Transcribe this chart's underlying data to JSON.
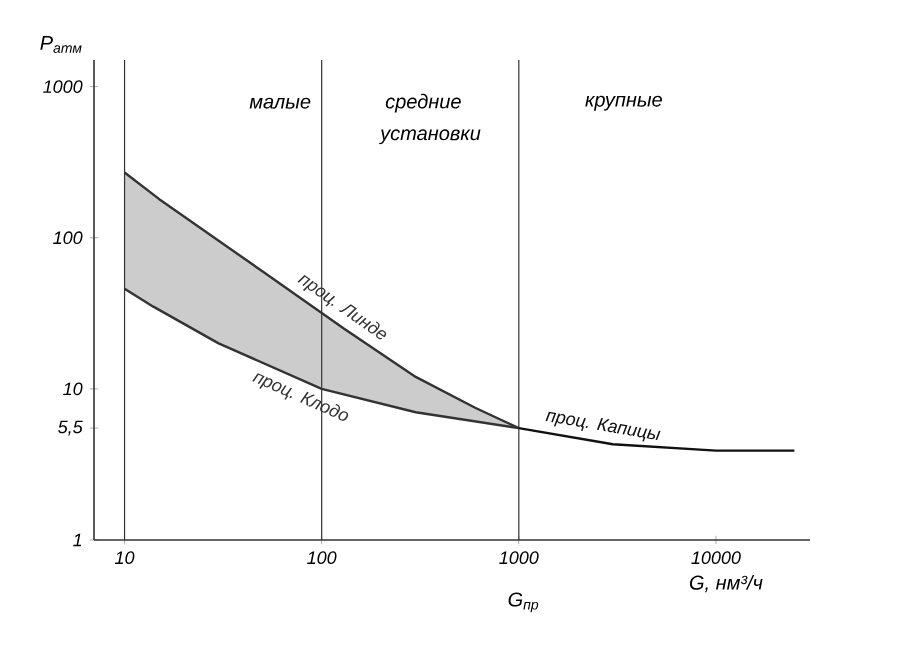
{
  "chart_data": {
    "type": "line",
    "xlabel": "G, нм³/ч",
    "ylabel": "P$_{атм}$",
    "log": "xy",
    "xlim": [
      7,
      30000
    ],
    "ylim": [
      1,
      1500
    ],
    "xticks": [
      10,
      100,
      1000,
      10000
    ],
    "yticks": [
      1,
      {
        "value": 5.5,
        "label": "5,5"
      },
      10,
      100,
      1000
    ],
    "grid": false,
    "marker": "none",
    "line_style": "solid",
    "series": [
      {
        "name": "проц. Линде",
        "color": "#333333",
        "x": [
          10,
          15,
          50,
          130,
          300,
          600,
          1000
        ],
        "values": [
          270,
          180,
          60,
          25,
          12,
          7.5,
          5.5
        ]
      },
      {
        "name": "проц. Клодо",
        "color": "#333333",
        "x": [
          10,
          14,
          30,
          100,
          300,
          1000
        ],
        "values": [
          46,
          35,
          20,
          10,
          7,
          5.5
        ],
        "lower": [
          46,
          35,
          20,
          10,
          7,
          5.5
        ],
        "upper": [
          270,
          190,
          95,
          32,
          12,
          5.5
        ]
      },
      {
        "name": "проц. Капицы",
        "color": "#111111",
        "x": [
          1000,
          3000,
          10000,
          25000
        ],
        "values": [
          5.5,
          4.3,
          3.9,
          3.9
        ]
      }
    ],
    "ref_lines": [
      {
        "axis": "x",
        "value": 10
      },
      {
        "axis": "x",
        "value": 100
      },
      {
        "axis": "x",
        "value": 1000
      }
    ],
    "annotations": [
      "малые",
      "средние",
      "крупные",
      "установки",
      "G$_{пр}$"
    ]
  }
}
